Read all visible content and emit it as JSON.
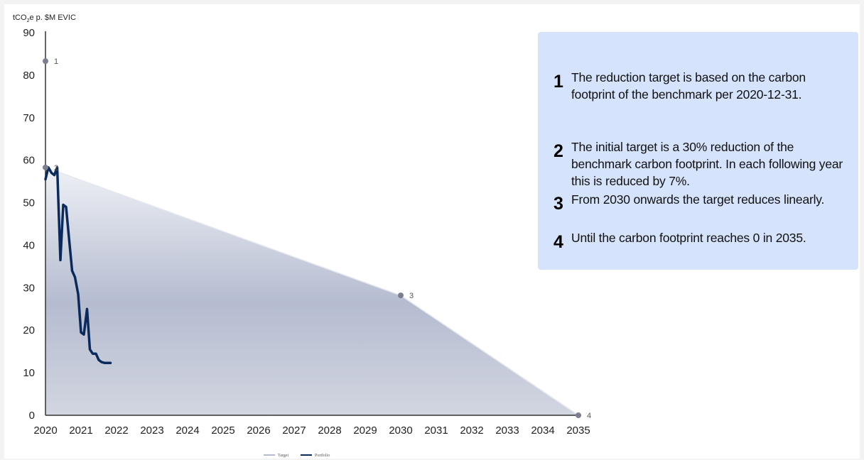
{
  "chart_data": {
    "type": "area",
    "ylabel_parts": {
      "main": "tCO",
      "sub": "2",
      "rest": "e p. $M EVIC"
    },
    "ylim": [
      0,
      90
    ],
    "yticks": [
      0,
      10,
      20,
      30,
      40,
      50,
      60,
      70,
      80,
      90
    ],
    "xlim": [
      2020,
      2035
    ],
    "xticks": [
      2020,
      2021,
      2022,
      2023,
      2024,
      2025,
      2026,
      2027,
      2028,
      2029,
      2030,
      2031,
      2032,
      2033,
      2034,
      2035
    ],
    "grid": false,
    "legend_position": "bottom-center",
    "series": [
      {
        "name": "Target",
        "style": "area",
        "color": "#b4bbcf",
        "x": [
          2020,
          2030,
          2035
        ],
        "y": [
          58.3,
          28.2,
          0
        ]
      },
      {
        "name": "Portfolio",
        "style": "line",
        "color": "#0b2a5c",
        "x": [
          2020.0,
          2020.08,
          2020.17,
          2020.25,
          2020.33,
          2020.42,
          2020.5,
          2020.58,
          2020.67,
          2020.75,
          2020.83,
          2020.92,
          2021.0,
          2021.08,
          2021.17,
          2021.25,
          2021.33,
          2021.42,
          2021.5,
          2021.58,
          2021.67,
          2021.75,
          2021.83
        ],
        "y": [
          55.5,
          58.3,
          57.0,
          56.5,
          58.3,
          36.5,
          49.5,
          49.0,
          41.0,
          34.0,
          32.5,
          28.5,
          19.5,
          19.0,
          25.0,
          15.5,
          14.5,
          14.5,
          13.0,
          12.5,
          12.3,
          12.3,
          12.3
        ]
      }
    ],
    "annotations": [
      {
        "label": "1",
        "x": 2020,
        "y": 83.3
      },
      {
        "label": "2",
        "x": 2020,
        "y": 58.3
      },
      {
        "label": "3",
        "x": 2030,
        "y": 28.2
      },
      {
        "label": "4",
        "x": 2035,
        "y": 0
      }
    ]
  },
  "notes": [
    {
      "num": "1",
      "text": "The reduction target is based on the carbon footprint of the benchmark per 2020-12-31."
    },
    {
      "num": "2",
      "text": "The initial target is a 30% reduction of the benchmark carbon footprint. In each following year this is reduced by 7%."
    },
    {
      "num": "3",
      "text": "From 2030 onwards the target reduces linearly."
    },
    {
      "num": "4",
      "text": "Until the carbon footprint reaches 0 in 2035."
    }
  ],
  "colors": {
    "panel_bg": "#d5e3fc",
    "marker": "#7b7f91",
    "axis": "#333333",
    "area_top": "#e8eaf1",
    "area_mid": "#b4bbcf",
    "area_bottom": "#cfd3df"
  }
}
